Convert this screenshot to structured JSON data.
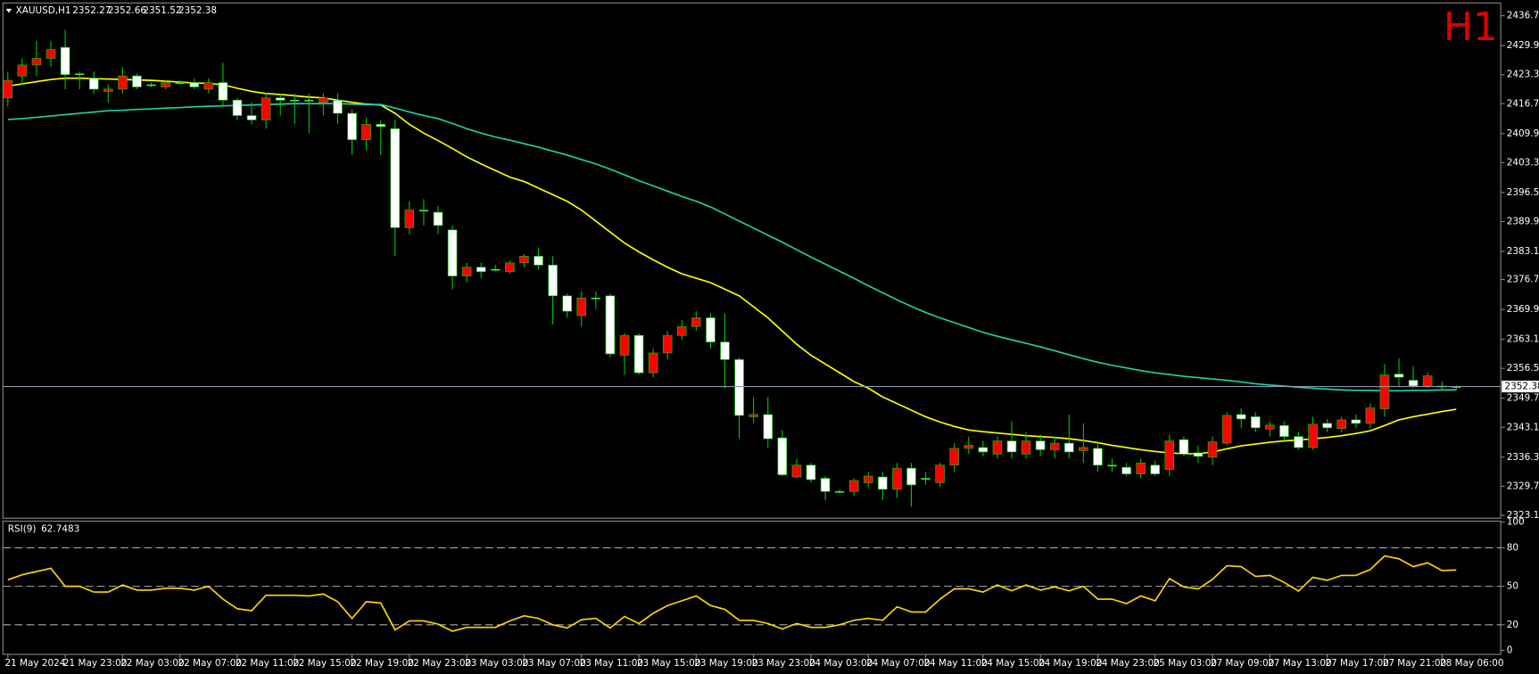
{
  "chart_data": [
    {
      "type": "candlestick",
      "title": "XAUUSD,H1",
      "badge": "H1",
      "categories": [
        "21 May 2024",
        null,
        null,
        null,
        "21 May 23:00",
        null,
        null,
        null,
        "22 May 03:00",
        null,
        null,
        null,
        "22 May 07:00",
        null,
        null,
        null,
        "22 May 11:00",
        null,
        null,
        null,
        "22 May 15:00",
        null,
        null,
        null,
        "22 May 19:00",
        null,
        null,
        null,
        "22 May 23:00",
        null,
        null,
        null,
        "23 May 03:00",
        null,
        null,
        null,
        "23 May 07:00",
        null,
        null,
        null,
        "23 May 11:00",
        null,
        null,
        null,
        "23 May 15:00",
        null,
        null,
        null,
        "23 May 19:00",
        null,
        null,
        null,
        "23 May 23:00",
        null,
        null,
        null,
        "24 May 03:00",
        null,
        null,
        null,
        "24 May 07:00",
        null,
        null,
        null,
        "24 May 11:00",
        null,
        null,
        null,
        "24 May 15:00",
        null,
        null,
        null,
        "24 May 19:00",
        null,
        null,
        null,
        "24 May 23:00",
        null,
        null,
        null,
        "25 May 03:00",
        null,
        null,
        null,
        "27 May 09:00",
        null,
        null,
        null,
        "27 May 13:00",
        null,
        null,
        null,
        "27 May 17:00",
        null,
        null,
        null,
        "27 May 21:00",
        null,
        null,
        null,
        "28 May 06:00",
        null
      ],
      "open": [
        2422,
        2425.5,
        2427,
        2429,
        2423.3,
        2423.3,
        2420,
        2420,
        2423,
        2420.5,
        2421,
        2421.5,
        2421.5,
        2420.5,
        2421.5,
        2417.5,
        2414,
        2413,
        2418,
        2417.5,
        2417.5,
        2417.5,
        2418,
        2414.5,
        2408.5,
        2412,
        2411.5,
        2388.5,
        2392.5,
        2392.5,
        2389,
        2377.5,
        2379.5,
        2378.5,
        2379,
        2380.5,
        2382,
        2380,
        2373,
        2369.5,
        2372.5,
        2372.5,
        2359.8,
        2364,
        2355.5,
        2360,
        2364,
        2366,
        2368,
        2362.5,
        2358.5,
        2345.8,
        2346,
        2340.5,
        2332.3,
        2334.5,
        2331.2,
        2328.5,
        2328.5,
        2331,
        2332,
        2329,
        2333.8,
        2330,
        2331.5,
        2334.5,
        2338.3,
        2339,
        2337.5,
        2340,
        2337.5,
        2340,
        2338,
        2339.5,
        2337.5,
        2338.5,
        2334.5,
        2334.5,
        2332.5,
        2335,
        2332.5,
        2340,
        2337,
        2336.5,
        2339.8,
        2345.8,
        2345,
        2343,
        2343.6,
        2341,
        2338.5,
        2343.8,
        2343,
        2344.8,
        2344,
        2347.5,
        2355,
        2354.5,
        2352.5,
        2354.8,
        2352.5,
        2352.27
      ],
      "high": [
        2424,
        2427,
        2431,
        2431,
        2433.5,
        2424,
        2424,
        2421,
        2425,
        2423.5,
        2421.5,
        2422,
        2422,
        2422.5,
        2422.5,
        2426,
        2418,
        2417,
        2419,
        2419,
        2419,
        2419,
        2419,
        2419,
        2415.5,
        2413.5,
        2413,
        2413,
        2394.5,
        2395,
        2393.5,
        2389,
        2380.5,
        2380.5,
        2380,
        2381,
        2382.5,
        2384,
        2382,
        2373.5,
        2374,
        2374,
        2373.5,
        2364.5,
        2364.5,
        2361,
        2365,
        2367.5,
        2369.5,
        2369,
        2369,
        2359,
        2350,
        2350,
        2342.5,
        2336,
        2335,
        2332,
        2329,
        2331.5,
        2333,
        2333,
        2335,
        2335,
        2333,
        2335,
        2339.5,
        2341,
        2340,
        2341,
        2344.5,
        2342,
        2341.5,
        2341,
        2346,
        2344,
        2340,
        2336,
        2335,
        2336,
        2335.5,
        2341.5,
        2341,
        2339,
        2341,
        2346.5,
        2347.5,
        2346.5,
        2344.5,
        2344.5,
        2342,
        2345.5,
        2345,
        2345.5,
        2346,
        2348.5,
        2357.5,
        2358.8,
        2357,
        2355.5,
        2353.5,
        2352.66
      ],
      "low": [
        2416,
        2421,
        2423,
        2425,
        2420,
        2420,
        2419,
        2417,
        2419,
        2420,
        2420.5,
        2420,
        2421,
        2420,
        2419,
        2416,
        2413,
        2412,
        2411,
        2414,
        2412,
        2410,
        2414,
        2412,
        2405,
        2406,
        2405,
        2382,
        2387,
        2389,
        2387,
        2374.5,
        2376,
        2377,
        2378.5,
        2378,
        2379.5,
        2379,
        2366.5,
        2368,
        2366,
        2370,
        2359,
        2355,
        2355,
        2354.5,
        2358.5,
        2363,
        2365,
        2361,
        2352,
        2340.5,
        2344,
        2338.5,
        2332,
        2331.5,
        2330.5,
        2326.5,
        2328,
        2327.5,
        2329.5,
        2326.5,
        2327,
        2325,
        2330,
        2329.5,
        2333,
        2337,
        2336.5,
        2336,
        2336,
        2336,
        2336.5,
        2336,
        2336,
        2335,
        2333,
        2333,
        2332,
        2331.5,
        2332,
        2332,
        2336.5,
        2335,
        2334.5,
        2339,
        2343,
        2342,
        2341,
        2340,
        2338,
        2338,
        2342,
        2342,
        2343,
        2343,
        2345.5,
        2352.5,
        2352,
        2352,
        2351.5,
        2351.52
      ],
      "close": [
        2418,
        2423,
        2425.5,
        2427,
        2429.5,
        2423.5,
        2422.5,
        2419.5,
        2420,
        2423,
        2421,
        2420.5,
        2421.5,
        2421.5,
        2420,
        2421.5,
        2417.5,
        2414,
        2413,
        2418,
        2417.5,
        2417.5,
        2417,
        2417.5,
        2414.5,
        2408.5,
        2412,
        2411,
        2388.5,
        2392.5,
        2392,
        2388,
        2377.5,
        2379.5,
        2379,
        2378.5,
        2380.5,
        2382,
        2380,
        2373,
        2368.5,
        2372.5,
        2373,
        2359.5,
        2364,
        2355.5,
        2360,
        2364,
        2366,
        2368,
        2362.5,
        2358.5,
        2345.5,
        2346,
        2340.7,
        2331.8,
        2334.5,
        2331.5,
        2328.5,
        2328.5,
        2330.5,
        2331.8,
        2329,
        2333.8,
        2331.5,
        2330.5,
        2334.5,
        2338.3,
        2338.5,
        2337,
        2340,
        2337,
        2340,
        2338,
        2339.5,
        2337.8,
        2338.3,
        2334.5,
        2334,
        2332.5,
        2334.5,
        2333.5,
        2340.3,
        2337.3,
        2336.3,
        2339.5,
        2346,
        2345.5,
        2342.7,
        2343.5,
        2341,
        2338.5,
        2344,
        2342.8,
        2344.8,
        2344,
        2347.3,
        2355.2,
        2353.8,
        2352.5,
        2352.5,
        2352.38
      ],
      "up_color": "#ffffff",
      "down_color": "#ff0000",
      "wick_color": "#00c800",
      "price_line_color": "#8a97a8",
      "badge_color": "#e00000",
      "overlays": [
        {
          "color": "#ffff00",
          "values": [
            2420.7,
            2421.2,
            2421.7,
            2422.2,
            2422.5,
            2422.5,
            2422.4,
            2422.3,
            2422.2,
            2422.1,
            2422,
            2421.8,
            2421.6,
            2421.4,
            2421.3,
            2421,
            2420.2,
            2419.5,
            2419,
            2418.8,
            2418.5,
            2418.2,
            2418,
            2417.5,
            2417,
            2416.6,
            2416.4,
            2414.5,
            2412,
            2410,
            2408.3,
            2406.5,
            2404.6,
            2403,
            2401.5,
            2400,
            2399,
            2397.5,
            2396,
            2394.5,
            2392.5,
            2390,
            2387.5,
            2385,
            2383,
            2381.2,
            2379.5,
            2378,
            2377,
            2376,
            2374.5,
            2373,
            2370.5,
            2368,
            2365,
            2362,
            2359.5,
            2357.5,
            2355.5,
            2353.5,
            2352,
            2350,
            2348.5,
            2347,
            2345.5,
            2344.3,
            2343.3,
            2342.5,
            2342.1,
            2341.8,
            2341.5,
            2341.2,
            2341,
            2340.8,
            2340.5,
            2340.1,
            2339.6,
            2339,
            2338.5,
            2338,
            2337.6,
            2337.3,
            2337.1,
            2337.1,
            2337.5,
            2338.2,
            2338.9,
            2339.3,
            2339.7,
            2340,
            2340.2,
            2340.5,
            2340.8,
            2341.2,
            2341.7,
            2342.3,
            2343.5,
            2344.8,
            2345.5,
            2346.1,
            2346.7,
            2347.2
          ]
        },
        {
          "color": "#20d0a8",
          "values": [
            2413.1,
            2413.3,
            2413.6,
            2413.9,
            2414.2,
            2414.5,
            2414.8,
            2415.1,
            2415.2,
            2415.4,
            2415.5,
            2415.7,
            2415.8,
            2416,
            2416.1,
            2416.2,
            2416.3,
            2416.4,
            2416.5,
            2416.6,
            2416.7,
            2416.7,
            2416.7,
            2416.7,
            2416.6,
            2416.5,
            2416.5,
            2415.7,
            2414.8,
            2414,
            2413.3,
            2412.2,
            2411,
            2410,
            2409.1,
            2408.4,
            2407.6,
            2406.8,
            2405.9,
            2405,
            2404,
            2403,
            2401.8,
            2400.5,
            2399.2,
            2398,
            2396.8,
            2395.6,
            2394.5,
            2393.2,
            2391.6,
            2390,
            2388.4,
            2386.8,
            2385.2,
            2383.5,
            2381.8,
            2380.2,
            2378.6,
            2377,
            2375.3,
            2373.7,
            2372.1,
            2370.6,
            2369.2,
            2368,
            2366.9,
            2365.8,
            2364.7,
            2363.8,
            2363,
            2362.2,
            2361.4,
            2360.5,
            2359.6,
            2358.7,
            2357.9,
            2357.2,
            2356.6,
            2356,
            2355.5,
            2355.1,
            2354.7,
            2354.4,
            2354.1,
            2353.8,
            2353.4,
            2353,
            2352.7,
            2352.5,
            2352.2,
            2352,
            2351.8,
            2351.6,
            2351.5,
            2351.5,
            2351.4,
            2351.4,
            2351.5,
            2351.5,
            2351.6,
            2351.6
          ]
        }
      ],
      "ylim": [
        2322.65,
        2439.15
      ],
      "yticks": [
        {
          "value": 2436.7,
          "label": "2436.70"
        },
        {
          "value": 2429.9,
          "label": "2429.90"
        },
        {
          "value": 2423.3,
          "label": "2423.30"
        },
        {
          "value": 2416.7,
          "label": "2416.70"
        },
        {
          "value": 2409.9,
          "label": "2409.90"
        },
        {
          "value": 2403.3,
          "label": "2403.30"
        },
        {
          "value": 2396.5,
          "label": "2396.50"
        },
        {
          "value": 2389.9,
          "label": "2389.90"
        },
        {
          "value": 2383.1,
          "label": "2383.10"
        },
        {
          "value": 2376.7,
          "label": "2376.70"
        },
        {
          "value": 2369.9,
          "label": "2369.90"
        },
        {
          "value": 2363.1,
          "label": "2363.10"
        },
        {
          "value": 2356.5,
          "label": "2356.50"
        },
        {
          "value": 2349.7,
          "label": "2349.70"
        },
        {
          "value": 2343.1,
          "label": "2343.10"
        },
        {
          "value": 2336.3,
          "label": "2336.30"
        },
        {
          "value": 2329.7,
          "label": "2329.70"
        },
        {
          "value": 2323.1,
          "label": "2323.10"
        }
      ]
    },
    {
      "type": "line",
      "title": "RSI(9)",
      "series": [
        {
          "color": "#ffd700",
          "values": [
            55,
            59,
            61.5,
            64,
            50,
            50,
            45.5,
            45.5,
            51,
            47,
            47,
            48.5,
            48.5,
            47,
            50,
            40,
            32.5,
            31,
            43,
            43,
            43,
            42.5,
            44,
            38,
            25,
            38,
            37,
            16,
            23,
            23,
            20.5,
            15,
            18,
            18,
            18,
            23,
            27,
            25,
            20,
            17.5,
            24,
            25,
            17.5,
            26.5,
            21,
            29,
            35,
            38.7,
            42.5,
            35,
            32,
            23.5,
            23.5,
            21,
            16.7,
            21,
            18,
            18,
            20,
            23.5,
            25,
            23.5,
            34,
            30,
            30,
            40,
            48,
            48,
            45.5,
            51,
            46.5,
            51,
            47,
            49.5,
            46.5,
            50,
            40,
            40,
            36.5,
            42.5,
            38.7,
            56,
            49.5,
            48,
            55.4,
            66,
            65.3,
            57.7,
            58.5,
            53,
            46.3,
            57,
            54.7,
            58.5,
            58.5,
            63,
            73.7,
            71.4,
            65.3,
            68.3,
            62.3,
            62.7483
          ]
        }
      ],
      "ylim": [
        0,
        100
      ],
      "yticks": [
        100,
        80,
        50,
        20,
        0
      ],
      "levels": [
        80,
        50,
        20
      ]
    }
  ]
}
